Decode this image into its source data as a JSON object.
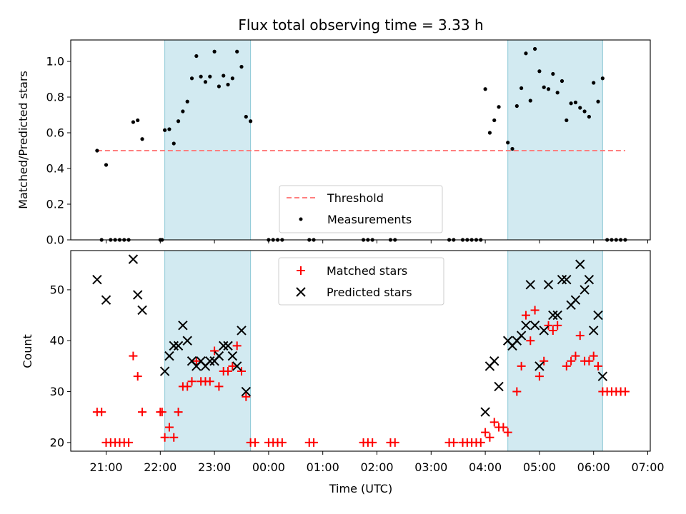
{
  "chart_data": {
    "title": "Flux total observing time = 3.33 h",
    "xlabel": "Time (UTC)",
    "x_tick_labels": [
      "21:00",
      "22:00",
      "23:00",
      "00:00",
      "01:00",
      "02:00",
      "03:00",
      "04:00",
      "05:00",
      "06:00",
      "07:00"
    ],
    "shaded_spans": [
      [
        "22:05",
        "23:40"
      ],
      [
        "04:25",
        "06:10"
      ]
    ],
    "shade_color": "#add8e6",
    "panels": [
      {
        "type": "scatter",
        "ylabel": "Matched/Predicted stars",
        "ylim": [
          0,
          1.12
        ],
        "y_ticks": [
          "0.0",
          "0.2",
          "0.4",
          "0.6",
          "0.8",
          "1.0"
        ],
        "legend_position": "lower center",
        "threshold": {
          "name": "Threshold",
          "value": 0.5,
          "x_range": [
            "20:50",
            "06:35"
          ],
          "color": "#ff7f7f",
          "style": "dashed"
        },
        "series": [
          {
            "name": "Measurements",
            "color": "#000000",
            "marker": "dot",
            "points": [
              [
                "20:50",
                0.5
              ],
              [
                "20:55",
                0.0
              ],
              [
                "21:00",
                0.42
              ],
              [
                "21:05",
                0.0
              ],
              [
                "21:10",
                0.0
              ],
              [
                "21:15",
                0.0
              ],
              [
                "21:20",
                0.0
              ],
              [
                "21:25",
                0.0
              ],
              [
                "21:30",
                0.66
              ],
              [
                "21:35",
                0.67
              ],
              [
                "21:40",
                0.565
              ],
              [
                "22:00",
                0.0
              ],
              [
                "22:02",
                0.0
              ],
              [
                "22:05",
                0.615
              ],
              [
                "22:10",
                0.62
              ],
              [
                "22:15",
                0.54
              ],
              [
                "22:20",
                0.665
              ],
              [
                "22:25",
                0.72
              ],
              [
                "22:30",
                0.775
              ],
              [
                "22:35",
                0.905
              ],
              [
                "22:40",
                1.03
              ],
              [
                "22:45",
                0.915
              ],
              [
                "22:50",
                0.885
              ],
              [
                "22:55",
                0.915
              ],
              [
                "23:00",
                1.055
              ],
              [
                "23:05",
                0.86
              ],
              [
                "23:10",
                0.92
              ],
              [
                "23:15",
                0.87
              ],
              [
                "23:20",
                0.905
              ],
              [
                "23:25",
                1.055
              ],
              [
                "23:30",
                0.97
              ],
              [
                "23:35",
                0.69
              ],
              [
                "23:40",
                0.665
              ],
              [
                "00:00",
                0.0
              ],
              [
                "00:05",
                0.0
              ],
              [
                "00:10",
                0.0
              ],
              [
                "00:15",
                0.0
              ],
              [
                "00:45",
                0.0
              ],
              [
                "00:50",
                0.0
              ],
              [
                "01:45",
                0.0
              ],
              [
                "01:50",
                0.0
              ],
              [
                "01:55",
                0.0
              ],
              [
                "02:15",
                0.0
              ],
              [
                "02:20",
                0.0
              ],
              [
                "03:20",
                0.0
              ],
              [
                "03:25",
                0.0
              ],
              [
                "03:35",
                0.0
              ],
              [
                "03:40",
                0.0
              ],
              [
                "03:45",
                0.0
              ],
              [
                "03:50",
                0.0
              ],
              [
                "03:55",
                0.0
              ],
              [
                "04:00",
                0.845
              ],
              [
                "04:05",
                0.6
              ],
              [
                "04:10",
                0.67
              ],
              [
                "04:15",
                0.745
              ],
              [
                "04:25",
                0.545
              ],
              [
                "04:30",
                0.51
              ],
              [
                "04:35",
                0.75
              ],
              [
                "04:40",
                0.85
              ],
              [
                "04:45",
                1.045
              ],
              [
                "04:50",
                0.78
              ],
              [
                "04:55",
                1.07
              ],
              [
                "05:00",
                0.945
              ],
              [
                "05:05",
                0.855
              ],
              [
                "05:10",
                0.845
              ],
              [
                "05:15",
                0.93
              ],
              [
                "05:20",
                0.825
              ],
              [
                "05:25",
                0.89
              ],
              [
                "05:30",
                0.67
              ],
              [
                "05:35",
                0.765
              ],
              [
                "05:40",
                0.77
              ],
              [
                "05:45",
                0.74
              ],
              [
                "05:50",
                0.72
              ],
              [
                "05:55",
                0.69
              ],
              [
                "06:00",
                0.88
              ],
              [
                "06:05",
                0.775
              ],
              [
                "06:10",
                0.905
              ],
              [
                "06:15",
                0.0
              ],
              [
                "06:20",
                0.0
              ],
              [
                "06:25",
                0.0
              ],
              [
                "06:30",
                0.0
              ],
              [
                "06:35",
                0.0
              ]
            ]
          }
        ]
      },
      {
        "type": "scatter",
        "ylabel": "Count",
        "ylim": [
          18.3,
          57.7
        ],
        "y_ticks": [
          "20",
          "30",
          "40",
          "50"
        ],
        "legend_position": "upper center",
        "series": [
          {
            "name": "Matched stars",
            "color": "#ff0000",
            "marker": "plus",
            "points": [
              [
                "20:50",
                26
              ],
              [
                "20:55",
                26
              ],
              [
                "21:00",
                20
              ],
              [
                "21:05",
                20
              ],
              [
                "21:10",
                20
              ],
              [
                "21:15",
                20
              ],
              [
                "21:20",
                20
              ],
              [
                "21:25",
                20
              ],
              [
                "21:30",
                37
              ],
              [
                "21:35",
                33
              ],
              [
                "21:40",
                26
              ],
              [
                "22:00",
                26
              ],
              [
                "22:02",
                26
              ],
              [
                "22:05",
                21
              ],
              [
                "22:10",
                23
              ],
              [
                "22:15",
                21
              ],
              [
                "22:20",
                26
              ],
              [
                "22:25",
                31
              ],
              [
                "22:30",
                31
              ],
              [
                "22:35",
                32
              ],
              [
                "22:40",
                36
              ],
              [
                "22:45",
                32
              ],
              [
                "22:50",
                32
              ],
              [
                "22:55",
                32
              ],
              [
                "23:00",
                38
              ],
              [
                "23:05",
                31
              ],
              [
                "23:10",
                34
              ],
              [
                "23:15",
                34
              ],
              [
                "23:20",
                35
              ],
              [
                "23:25",
                39
              ],
              [
                "23:30",
                34
              ],
              [
                "23:35",
                29
              ],
              [
                "23:40",
                20
              ],
              [
                "23:45",
                20
              ],
              [
                "00:00",
                20
              ],
              [
                "00:05",
                20
              ],
              [
                "00:10",
                20
              ],
              [
                "00:15",
                20
              ],
              [
                "00:45",
                20
              ],
              [
                "00:50",
                20
              ],
              [
                "01:45",
                20
              ],
              [
                "01:50",
                20
              ],
              [
                "01:55",
                20
              ],
              [
                "02:15",
                20
              ],
              [
                "02:20",
                20
              ],
              [
                "03:20",
                20
              ],
              [
                "03:25",
                20
              ],
              [
                "03:35",
                20
              ],
              [
                "03:40",
                20
              ],
              [
                "03:45",
                20
              ],
              [
                "03:50",
                20
              ],
              [
                "03:55",
                20
              ],
              [
                "04:00",
                22
              ],
              [
                "04:05",
                21
              ],
              [
                "04:10",
                24
              ],
              [
                "04:15",
                23
              ],
              [
                "04:20",
                23
              ],
              [
                "04:25",
                22
              ],
              [
                "04:35",
                30
              ],
              [
                "04:40",
                35
              ],
              [
                "04:45",
                45
              ],
              [
                "04:50",
                40
              ],
              [
                "04:55",
                46
              ],
              [
                "05:00",
                33
              ],
              [
                "05:05",
                36
              ],
              [
                "05:10",
                43
              ],
              [
                "05:15",
                42
              ],
              [
                "05:20",
                43
              ],
              [
                "05:30",
                35
              ],
              [
                "05:35",
                36
              ],
              [
                "05:40",
                37
              ],
              [
                "05:45",
                41
              ],
              [
                "05:50",
                36
              ],
              [
                "05:55",
                36
              ],
              [
                "06:00",
                37
              ],
              [
                "06:05",
                35
              ],
              [
                "06:10",
                30
              ],
              [
                "06:15",
                30
              ],
              [
                "06:20",
                30
              ],
              [
                "06:25",
                30
              ],
              [
                "06:30",
                30
              ],
              [
                "06:35",
                30
              ]
            ]
          },
          {
            "name": "Predicted stars",
            "color": "#000000",
            "marker": "x",
            "points": [
              [
                "20:50",
                52
              ],
              [
                "21:00",
                48
              ],
              [
                "21:30",
                56
              ],
              [
                "21:35",
                49
              ],
              [
                "21:40",
                46
              ],
              [
                "22:05",
                34
              ],
              [
                "22:10",
                37
              ],
              [
                "22:15",
                39
              ],
              [
                "22:20",
                39
              ],
              [
                "22:25",
                43
              ],
              [
                "22:30",
                40
              ],
              [
                "22:35",
                36
              ],
              [
                "22:40",
                35
              ],
              [
                "22:45",
                36
              ],
              [
                "22:50",
                35
              ],
              [
                "22:55",
                36
              ],
              [
                "23:00",
                36
              ],
              [
                "23:05",
                37
              ],
              [
                "23:10",
                39
              ],
              [
                "23:15",
                39
              ],
              [
                "23:20",
                37
              ],
              [
                "23:25",
                35
              ],
              [
                "23:30",
                42
              ],
              [
                "23:35",
                30
              ],
              [
                "04:00",
                26
              ],
              [
                "04:05",
                35
              ],
              [
                "04:10",
                36
              ],
              [
                "04:15",
                31
              ],
              [
                "04:25",
                40
              ],
              [
                "04:30",
                39
              ],
              [
                "04:35",
                40
              ],
              [
                "04:40",
                41
              ],
              [
                "04:45",
                43
              ],
              [
                "04:50",
                51
              ],
              [
                "04:55",
                43
              ],
              [
                "05:00",
                35
              ],
              [
                "05:05",
                42
              ],
              [
                "05:10",
                51
              ],
              [
                "05:15",
                45
              ],
              [
                "05:20",
                45
              ],
              [
                "05:25",
                52
              ],
              [
                "05:30",
                52
              ],
              [
                "05:35",
                47
              ],
              [
                "05:40",
                48
              ],
              [
                "05:45",
                55
              ],
              [
                "05:50",
                50
              ],
              [
                "05:55",
                52
              ],
              [
                "06:00",
                42
              ],
              [
                "06:05",
                45
              ],
              [
                "06:10",
                33
              ]
            ]
          }
        ]
      }
    ]
  }
}
